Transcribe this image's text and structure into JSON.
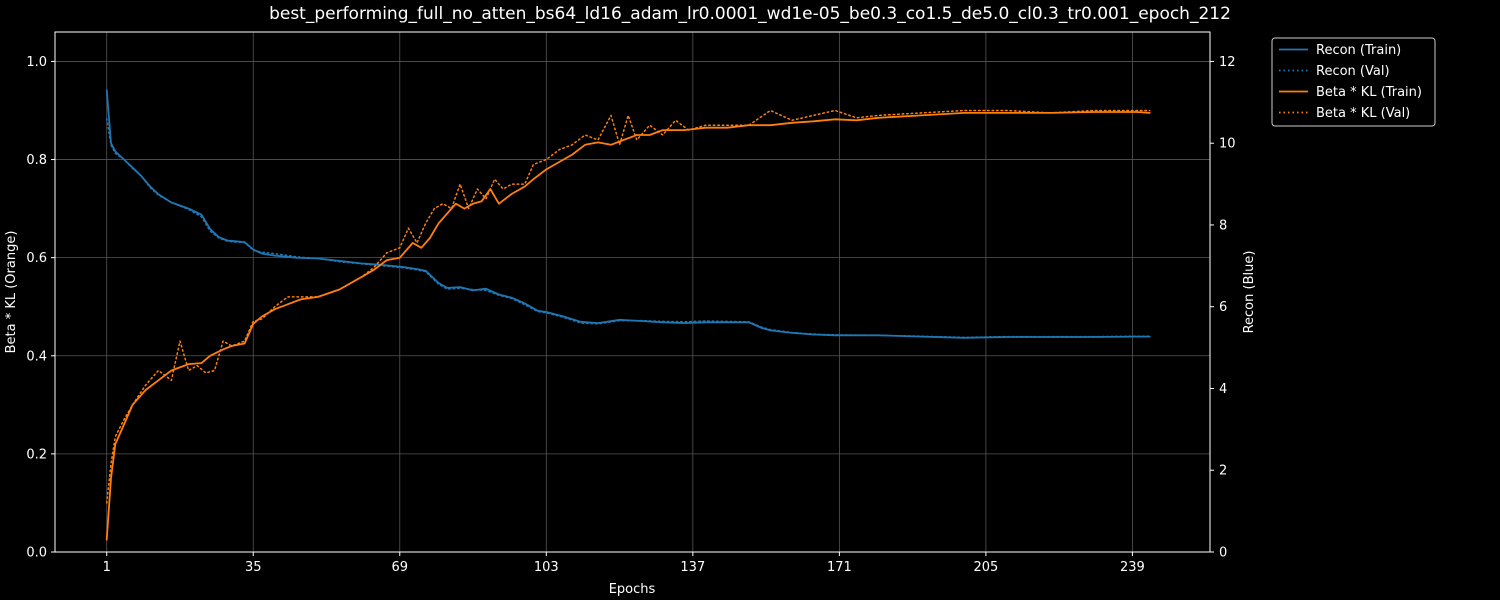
{
  "chart_data": {
    "type": "line",
    "title": "best_performing_full_no_atten_bs64_ld16_adam_lr0.0001_wd1e-05_be0.3_co1.5_de5.0_cl0.3_tr0.001_epoch_212",
    "xlabel": "Epochs",
    "ylabel_left": "Beta * KL (Orange)",
    "ylabel_right": "Recon (Blue)",
    "xticks": [
      1,
      35,
      69,
      103,
      137,
      171,
      205,
      239
    ],
    "xlim": [
      -11,
      257
    ],
    "ylim_left": [
      0,
      1.06
    ],
    "yticks_left": [
      "0.0",
      "0.2",
      "0.4",
      "0.6",
      "0.8",
      "1.0"
    ],
    "ylim_right": [
      0,
      12.72
    ],
    "yticks_right": [
      "0",
      "2",
      "4",
      "6",
      "8",
      "10",
      "12"
    ],
    "grid": true,
    "legend_position": "outside-top-right",
    "colors": {
      "recon": "#1f77b4",
      "kl": "#ff7f0e",
      "grid": "#555555",
      "axes": "#ffffff"
    },
    "series": [
      {
        "name": "Recon (Train)",
        "axis": "right",
        "style": "solid",
        "color": "#1f77b4",
        "x": [
          1,
          2,
          3,
          5,
          7,
          9,
          11,
          13,
          16,
          20,
          23,
          25,
          27,
          29,
          31,
          33,
          35,
          37,
          40,
          45,
          50,
          55,
          60,
          65,
          70,
          73,
          75,
          78,
          80,
          83,
          86,
          89,
          92,
          95,
          98,
          101,
          103,
          107,
          111,
          115,
          120,
          125,
          130,
          135,
          140,
          145,
          150,
          153,
          155,
          160,
          165,
          170,
          180,
          190,
          200,
          210,
          220,
          230,
          240,
          243
        ],
        "y": [
          11.3,
          10.0,
          9.8,
          9.6,
          9.4,
          9.2,
          8.95,
          8.75,
          8.55,
          8.4,
          8.25,
          7.9,
          7.7,
          7.62,
          7.6,
          7.58,
          7.4,
          7.3,
          7.25,
          7.2,
          7.18,
          7.12,
          7.06,
          7.02,
          6.97,
          6.92,
          6.88,
          6.58,
          6.46,
          6.48,
          6.4,
          6.44,
          6.3,
          6.22,
          6.08,
          5.9,
          5.87,
          5.76,
          5.63,
          5.6,
          5.68,
          5.65,
          5.62,
          5.6,
          5.62,
          5.62,
          5.62,
          5.48,
          5.42,
          5.36,
          5.32,
          5.3,
          5.3,
          5.27,
          5.24,
          5.26,
          5.26,
          5.26,
          5.27,
          5.27
        ]
      },
      {
        "name": "Recon (Val)",
        "axis": "right",
        "style": "dotted",
        "color": "#1f77b4",
        "x": [
          1,
          2,
          3,
          5,
          7,
          9,
          11,
          13,
          16,
          20,
          23,
          25,
          27,
          29,
          31,
          33,
          35,
          37,
          40,
          45,
          50,
          55,
          60,
          65,
          70,
          73,
          75,
          78,
          80,
          83,
          86,
          89,
          92,
          95,
          98,
          101,
          103,
          107,
          111,
          115,
          120,
          125,
          130,
          135,
          140,
          145,
          150,
          153,
          155,
          160,
          165,
          170,
          180,
          190,
          200,
          210,
          220,
          230,
          240,
          243
        ],
        "y": [
          10.6,
          9.95,
          9.75,
          9.6,
          9.38,
          9.2,
          8.92,
          8.73,
          8.55,
          8.38,
          8.2,
          7.85,
          7.68,
          7.6,
          7.58,
          7.57,
          7.38,
          7.33,
          7.3,
          7.22,
          7.18,
          7.1,
          7.05,
          7.0,
          6.95,
          6.9,
          6.86,
          6.55,
          6.43,
          6.45,
          6.42,
          6.4,
          6.28,
          6.2,
          6.05,
          5.88,
          5.85,
          5.74,
          5.6,
          5.58,
          5.66,
          5.66,
          5.64,
          5.63,
          5.65,
          5.64,
          5.63,
          5.5,
          5.44,
          5.37,
          5.33,
          5.31,
          5.3,
          5.28,
          5.25,
          5.27,
          5.27,
          5.27,
          5.28,
          5.28
        ]
      },
      {
        "name": "Beta * KL (Train)",
        "axis": "left",
        "style": "solid",
        "color": "#ff7f0e",
        "x": [
          1,
          2,
          3,
          5,
          7,
          10,
          13,
          16,
          20,
          23,
          25,
          28,
          30,
          33,
          35,
          37,
          40,
          43,
          46,
          50,
          55,
          60,
          63,
          66,
          69,
          72,
          74,
          76,
          78,
          80,
          82,
          84,
          86,
          88,
          90,
          92,
          95,
          98,
          100,
          103,
          106,
          109,
          112,
          115,
          118,
          121,
          124,
          127,
          130,
          135,
          140,
          145,
          150,
          155,
          160,
          165,
          170,
          175,
          180,
          190,
          200,
          210,
          220,
          230,
          240,
          243
        ],
        "y": [
          0.025,
          0.15,
          0.22,
          0.26,
          0.3,
          0.33,
          0.35,
          0.37,
          0.383,
          0.385,
          0.4,
          0.413,
          0.42,
          0.425,
          0.465,
          0.48,
          0.495,
          0.505,
          0.515,
          0.52,
          0.535,
          0.56,
          0.575,
          0.595,
          0.6,
          0.63,
          0.62,
          0.64,
          0.67,
          0.69,
          0.71,
          0.7,
          0.71,
          0.715,
          0.74,
          0.71,
          0.73,
          0.745,
          0.76,
          0.78,
          0.795,
          0.81,
          0.83,
          0.835,
          0.83,
          0.84,
          0.85,
          0.85,
          0.86,
          0.86,
          0.865,
          0.865,
          0.87,
          0.87,
          0.875,
          0.878,
          0.882,
          0.88,
          0.885,
          0.89,
          0.895,
          0.895,
          0.895,
          0.897,
          0.897,
          0.895
        ]
      },
      {
        "name": "Beta * KL (Val)",
        "axis": "left",
        "style": "dotted",
        "color": "#ff7f0e",
        "x": [
          1,
          2,
          3,
          5,
          7,
          10,
          13,
          16,
          18,
          20,
          22,
          24,
          26,
          28,
          30,
          33,
          35,
          37,
          40,
          43,
          46,
          50,
          55,
          60,
          63,
          66,
          69,
          71,
          73,
          75,
          77,
          79,
          81,
          83,
          85,
          87,
          89,
          91,
          93,
          95,
          98,
          100,
          103,
          106,
          109,
          112,
          115,
          118,
          120,
          122,
          124,
          127,
          130,
          133,
          136,
          140,
          145,
          150,
          155,
          160,
          165,
          170,
          175,
          180,
          190,
          200,
          210,
          220,
          230,
          240,
          243
        ],
        "y": [
          0.1,
          0.18,
          0.235,
          0.27,
          0.3,
          0.34,
          0.37,
          0.35,
          0.43,
          0.37,
          0.38,
          0.365,
          0.37,
          0.43,
          0.42,
          0.43,
          0.47,
          0.475,
          0.5,
          0.52,
          0.52,
          0.52,
          0.535,
          0.56,
          0.58,
          0.61,
          0.62,
          0.66,
          0.63,
          0.67,
          0.7,
          0.71,
          0.7,
          0.75,
          0.7,
          0.74,
          0.72,
          0.76,
          0.74,
          0.75,
          0.75,
          0.79,
          0.8,
          0.82,
          0.83,
          0.85,
          0.84,
          0.89,
          0.83,
          0.89,
          0.84,
          0.87,
          0.85,
          0.88,
          0.86,
          0.87,
          0.87,
          0.87,
          0.9,
          0.88,
          0.89,
          0.9,
          0.885,
          0.89,
          0.895,
          0.9,
          0.9,
          0.895,
          0.9,
          0.9,
          0.9
        ]
      }
    ]
  }
}
